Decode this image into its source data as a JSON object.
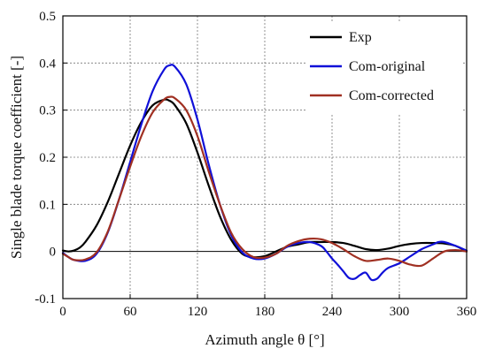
{
  "chart_data": {
    "type": "line",
    "xlabel": "Azimuth angle θ [°]",
    "ylabel": "Single blade torque coefficient [-]",
    "xlim": [
      0,
      360
    ],
    "ylim": [
      -0.1,
      0.5
    ],
    "xticks": [
      0,
      60,
      120,
      180,
      240,
      300,
      360
    ],
    "yticks": [
      -0.1,
      0,
      0.1,
      0.2,
      0.3,
      0.4,
      0.5
    ],
    "xtick_labels": [
      "0",
      "60",
      "120",
      "180",
      "240",
      "300",
      "360"
    ],
    "ytick_labels": [
      "-0.1",
      "0",
      "0.1",
      "0.2",
      "0.3",
      "0.4",
      "0.5"
    ],
    "grid": true,
    "legend_position": "top-right",
    "series": [
      {
        "name": "Exp",
        "color": "#000000",
        "x": [
          0,
          5,
          10,
          15,
          20,
          30,
          40,
          50,
          60,
          70,
          80,
          90,
          95,
          100,
          110,
          120,
          130,
          140,
          150,
          160,
          170,
          180,
          190,
          200,
          210,
          220,
          230,
          240,
          250,
          260,
          270,
          280,
          290,
          300,
          310,
          320,
          330,
          340,
          350,
          360
        ],
        "values": [
          0.002,
          0.0,
          0.002,
          0.008,
          0.02,
          0.055,
          0.105,
          0.165,
          0.225,
          0.275,
          0.31,
          0.322,
          0.32,
          0.31,
          0.272,
          0.21,
          0.14,
          0.075,
          0.025,
          -0.005,
          -0.012,
          -0.01,
          0.0,
          0.01,
          0.015,
          0.02,
          0.02,
          0.02,
          0.018,
          0.012,
          0.005,
          0.003,
          0.006,
          0.012,
          0.016,
          0.018,
          0.018,
          0.017,
          0.012,
          0.0
        ]
      },
      {
        "name": "Com-original",
        "color": "#1010d8",
        "x": [
          0,
          5,
          10,
          20,
          30,
          40,
          50,
          60,
          70,
          80,
          90,
          95,
          100,
          110,
          120,
          130,
          140,
          150,
          160,
          170,
          180,
          190,
          200,
          210,
          220,
          230,
          235,
          240,
          245,
          250,
          255,
          260,
          265,
          270,
          275,
          280,
          285,
          290,
          300,
          310,
          320,
          330,
          335,
          340,
          350,
          360
        ],
        "values": [
          -0.003,
          -0.012,
          -0.018,
          -0.02,
          -0.005,
          0.04,
          0.11,
          0.19,
          0.27,
          0.34,
          0.385,
          0.395,
          0.392,
          0.355,
          0.28,
          0.185,
          0.1,
          0.035,
          -0.002,
          -0.015,
          -0.015,
          -0.005,
          0.01,
          0.018,
          0.02,
          0.012,
          0.0,
          -0.015,
          -0.028,
          -0.042,
          -0.056,
          -0.058,
          -0.05,
          -0.045,
          -0.06,
          -0.058,
          -0.045,
          -0.035,
          -0.025,
          -0.01,
          0.005,
          0.015,
          0.02,
          0.02,
          0.012,
          0.002
        ]
      },
      {
        "name": "Com-corrected",
        "color": "#a03022",
        "x": [
          0,
          5,
          10,
          20,
          30,
          40,
          50,
          60,
          70,
          80,
          90,
          95,
          100,
          110,
          120,
          130,
          140,
          150,
          160,
          170,
          180,
          190,
          200,
          210,
          220,
          230,
          240,
          250,
          260,
          270,
          280,
          290,
          300,
          310,
          320,
          330,
          340,
          350,
          360
        ],
        "values": [
          -0.005,
          -0.012,
          -0.018,
          -0.017,
          -0.002,
          0.042,
          0.11,
          0.18,
          0.245,
          0.295,
          0.322,
          0.328,
          0.325,
          0.3,
          0.245,
          0.17,
          0.1,
          0.04,
          0.005,
          -0.012,
          -0.013,
          -0.005,
          0.012,
          0.022,
          0.027,
          0.026,
          0.018,
          0.005,
          -0.01,
          -0.02,
          -0.018,
          -0.015,
          -0.02,
          -0.028,
          -0.03,
          -0.015,
          0.0,
          0.003,
          0.0
        ]
      }
    ]
  }
}
